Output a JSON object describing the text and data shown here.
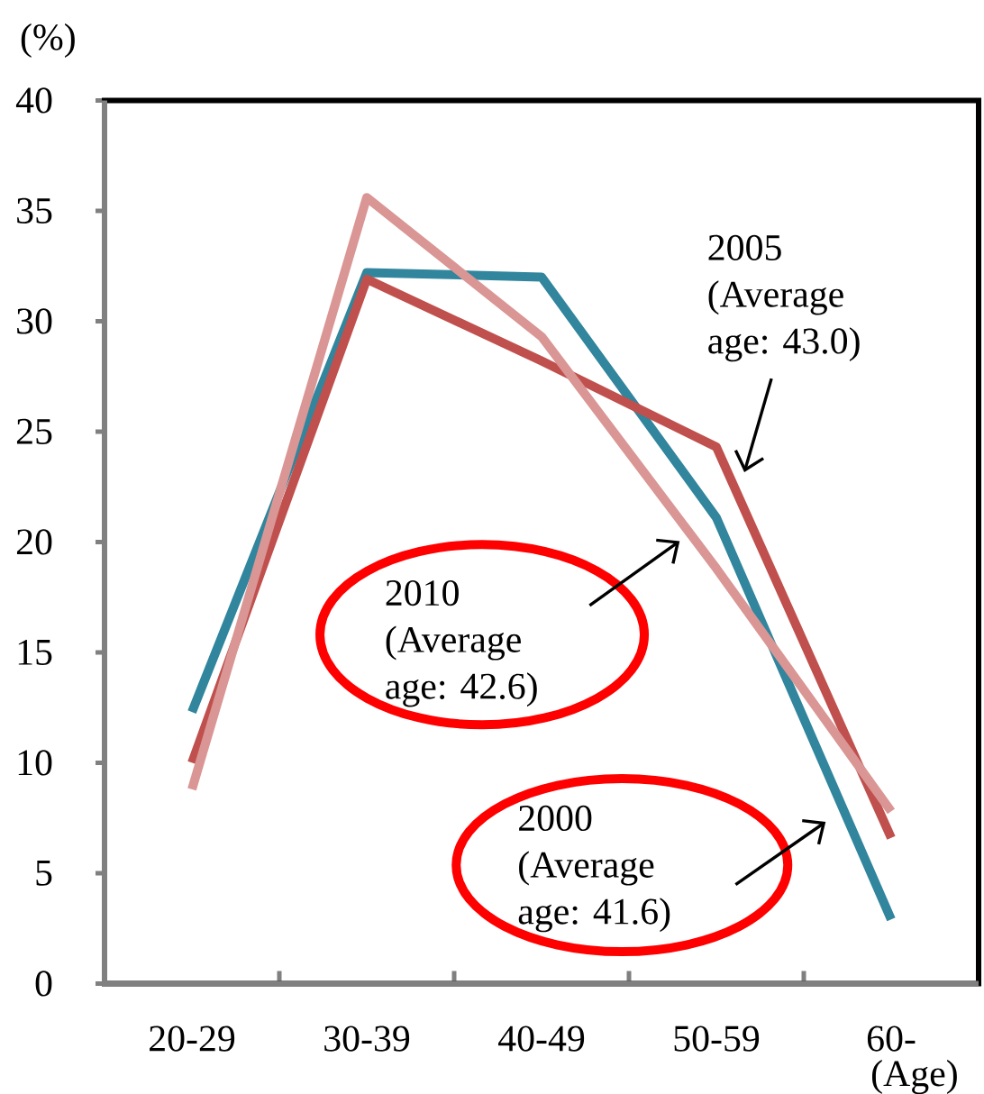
{
  "chart_data": {
    "type": "line",
    "ylabel": "(%)",
    "xlabel": "(Age)",
    "categories": [
      "20-29",
      "30-39",
      "40-49",
      "50-59",
      "60-"
    ],
    "series": [
      {
        "color": "#31859c",
        "values": [
          12.3,
          32.2,
          32.0,
          21.1,
          2.9
        ]
      },
      {
        "color": "#c0504d",
        "values": [
          10.0,
          31.9,
          28.2,
          24.3,
          6.6
        ]
      },
      {
        "color": "#d99694",
        "values": [
          8.8,
          35.6,
          29.3,
          18.8,
          7.8
        ]
      }
    ],
    "ylim": [
      0,
      40
    ],
    "yticks": [
      0,
      5,
      10,
      15,
      20,
      25,
      30,
      35,
      40
    ],
    "annotations": [
      "2005 (Average age: 43.0)",
      "2010 (Average age: 42.6)",
      "2000 (Average age: 41.6)"
    ],
    "marker": "none",
    "line_style": "solid"
  }
}
